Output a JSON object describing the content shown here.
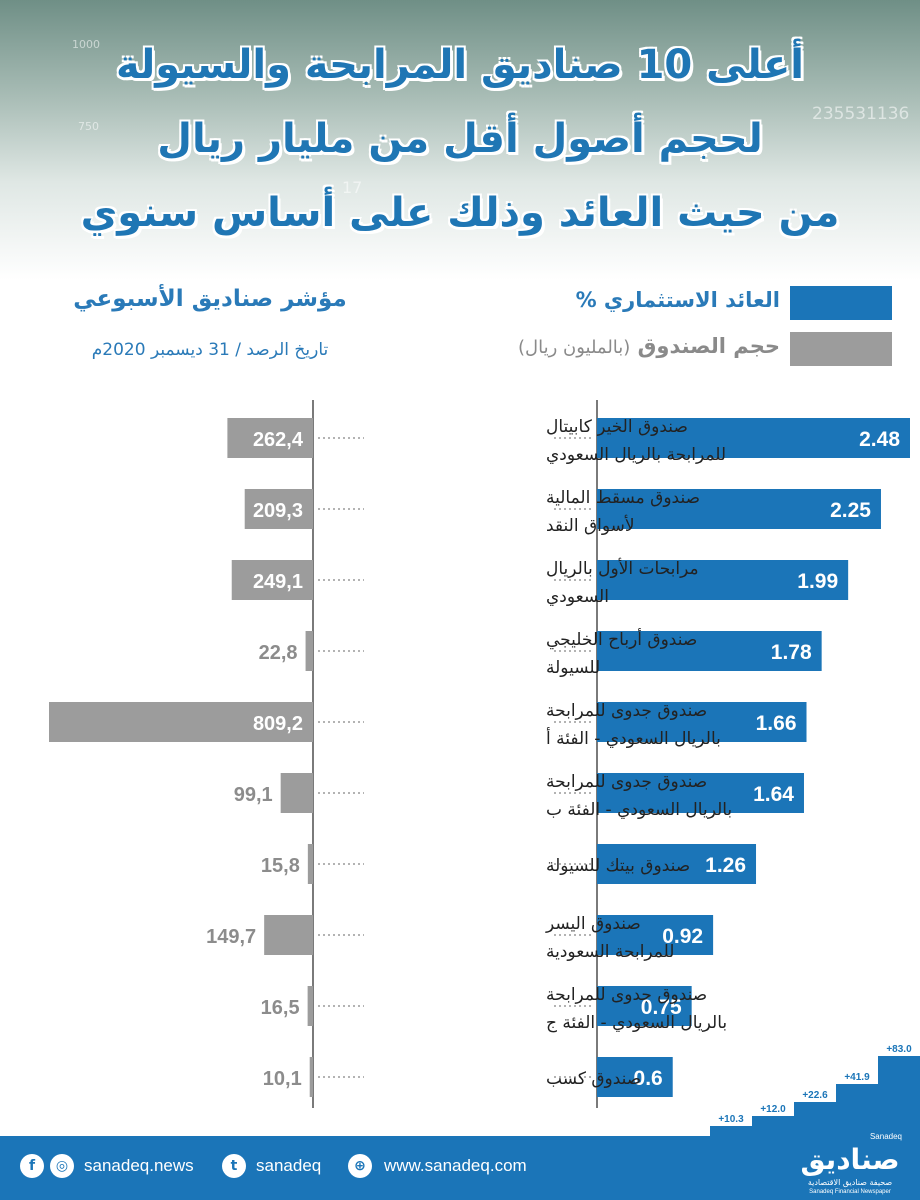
{
  "header": {
    "title_lines": [
      "أعلى 10 صناديق المرابحة والسيولة",
      "لحجم أصول أقل من مليار ريال",
      "من حيث العائد وذلك على أساس سنوي"
    ],
    "bg_numbers": [
      "1000",
      "750",
      "235531136",
      "17"
    ]
  },
  "index_title": "مؤشر صناديق الأسبوعي",
  "observation_date": "تاريخ الرصد / 31 ديسمبر 2020م",
  "legend": {
    "return_label": "العائد الاستثماري %",
    "return_color": "#1b75b8",
    "size_label": "حجم الصندوق",
    "size_unit": "(بالمليون ريال)",
    "size_color": "#9c9c9c"
  },
  "chart_data": {
    "type": "bar",
    "categories": [
      [
        "صندوق الخير كابيتال",
        "للمرابحة بالريال السعودي"
      ],
      [
        "صندوق مسقط المالية",
        "لأسواق النقد"
      ],
      [
        "مرابحات الأول بالريال",
        "السعودي"
      ],
      [
        "صندوق أرباح الخليجي",
        "للسيولة"
      ],
      [
        "صندوق جدوى للمرابحة",
        "بالريال السعودي - الفئة أ"
      ],
      [
        "صندوق جدوى للمرابحة",
        "بالريال السعودي - الفئة ب"
      ],
      [
        "صندوق بيتك للسيولة"
      ],
      [
        "صندوق اليسر",
        "للمرابحة السعودية"
      ],
      [
        "صندوق جدوى للمرابحة",
        "بالريال السعودي - الفئة ج"
      ],
      [
        "صندوق كسب"
      ]
    ],
    "series": [
      {
        "name": "العائد الاستثماري %",
        "values": [
          2.48,
          2.25,
          1.99,
          1.78,
          1.66,
          1.64,
          1.26,
          0.92,
          0.75,
          0.6
        ],
        "labels": [
          "2.48",
          "2.25",
          "1.99",
          "1.78",
          "1.66",
          "1.64",
          "1.26",
          "0.92",
          "0.75",
          "0.6"
        ]
      },
      {
        "name": "حجم الصندوق (بالمليون ريال)",
        "values": [
          262.4,
          209.3,
          249.1,
          22.8,
          809.2,
          99.1,
          15.8,
          149.7,
          16.5,
          10.1
        ],
        "labels": [
          "262,4",
          "209,3",
          "249,1",
          "22,8",
          "809,2",
          "99,1",
          "15,8",
          "149,7",
          "16,5",
          "10,1"
        ]
      }
    ]
  },
  "footer": {
    "social": "sanadeq.news",
    "twitter": "sanadeq",
    "website": "www.sanadeq.com",
    "brand_ar": "صناديق",
    "brand_en": "Sanadeq",
    "tagline_ar": "صحيفة صناديق الاقتصادية",
    "tagline_en": "Sanadeq Financial Newspaper",
    "steps": [
      "+10.3",
      "+12.0",
      "+22.6",
      "+41.9",
      "+83.0"
    ]
  }
}
